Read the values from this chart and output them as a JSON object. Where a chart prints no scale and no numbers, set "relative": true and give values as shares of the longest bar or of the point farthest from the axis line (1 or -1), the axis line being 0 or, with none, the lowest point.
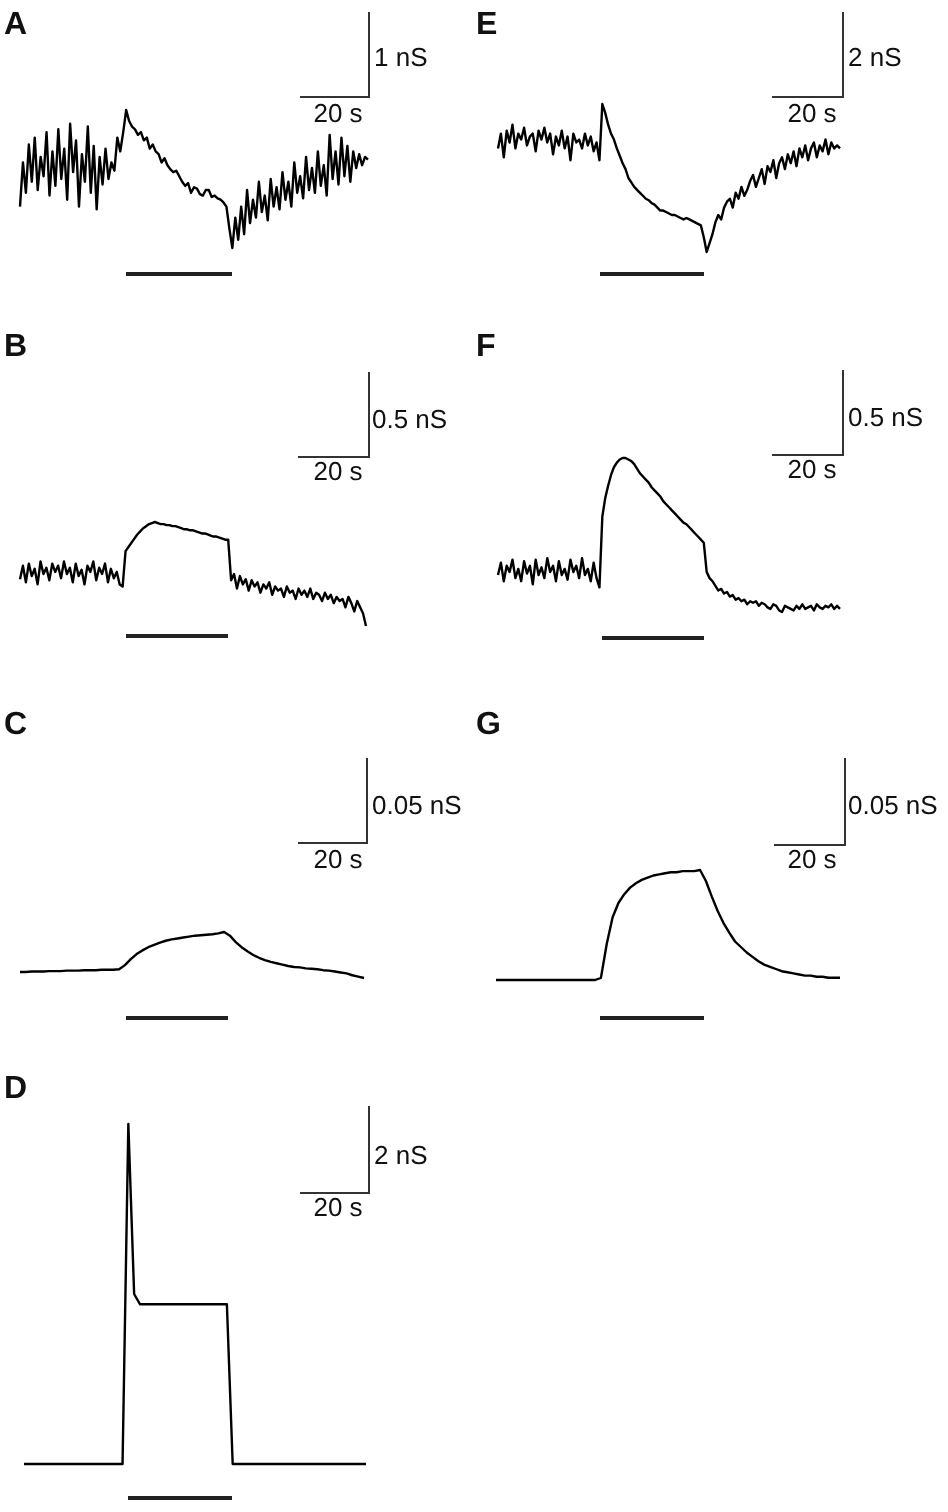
{
  "chart_data": [
    {
      "type": "line",
      "title": "A",
      "relative": true,
      "color": "#000000",
      "annotations": [
        "1 nS",
        "20 s"
      ],
      "categories": [
        null,
        null,
        null,
        null,
        null,
        null,
        null,
        null,
        null,
        null,
        null,
        null,
        null,
        null,
        null,
        null,
        null,
        null,
        null,
        null,
        null,
        null,
        null,
        null,
        null,
        null,
        null,
        null,
        null,
        null,
        null,
        null,
        null,
        null,
        null,
        null,
        null,
        null,
        null,
        null,
        null,
        null,
        null,
        null,
        null,
        null,
        null,
        null,
        null,
        null,
        null,
        null,
        null,
        null,
        null,
        null,
        null,
        null,
        null,
        null,
        null,
        null,
        null,
        null,
        null,
        null,
        null,
        null,
        null,
        null,
        null,
        null,
        null,
        null,
        null,
        null,
        null,
        null,
        null,
        null,
        null,
        null,
        null,
        null,
        null,
        null,
        null,
        null,
        null,
        null,
        null,
        null,
        null,
        null,
        null,
        null,
        null,
        null,
        null,
        null,
        null,
        null,
        null,
        null,
        null,
        null,
        null,
        null,
        null,
        null,
        null,
        null,
        null,
        null,
        null,
        null,
        null,
        null,
        null
      ],
      "values": [
        0.3,
        0.62,
        0.4,
        0.75,
        0.48,
        0.8,
        0.42,
        0.66,
        0.52,
        0.84,
        0.38,
        0.7,
        0.45,
        0.86,
        0.5,
        0.72,
        0.35,
        0.9,
        0.55,
        0.78,
        0.3,
        0.68,
        0.48,
        0.88,
        0.4,
        0.74,
        0.28,
        0.66,
        0.46,
        0.72,
        0.5,
        0.62,
        0.56,
        0.8,
        0.7,
        0.84,
        1.0,
        0.92,
        0.88,
        0.86,
        0.82,
        0.84,
        0.78,
        0.8,
        0.72,
        0.75,
        0.7,
        0.68,
        0.62,
        0.65,
        0.6,
        0.57,
        0.55,
        0.56,
        0.52,
        0.48,
        0.45,
        0.47,
        0.4,
        0.44,
        0.43,
        0.39,
        0.38,
        0.42,
        0.42,
        0.37,
        0.38,
        0.36,
        0.35,
        0.33,
        0.3,
        0.14,
        0.0,
        0.22,
        0.06,
        0.3,
        0.1,
        0.42,
        0.18,
        0.35,
        0.22,
        0.48,
        0.26,
        0.38,
        0.2,
        0.5,
        0.3,
        0.44,
        0.28,
        0.55,
        0.35,
        0.48,
        0.3,
        0.62,
        0.4,
        0.52,
        0.36,
        0.66,
        0.42,
        0.58,
        0.4,
        0.7,
        0.45,
        0.6,
        0.38,
        0.82,
        0.5,
        0.7,
        0.46,
        0.8,
        0.52,
        0.74,
        0.48,
        0.7,
        0.58,
        0.68,
        0.6,
        0.66,
        0.64
      ]
    },
    {
      "type": "line",
      "title": "B",
      "relative": true,
      "color": "#000000",
      "annotations": [
        "0.5 nS",
        "20 s"
      ],
      "categories": [
        null,
        null,
        null,
        null,
        null,
        null,
        null,
        null,
        null,
        null,
        null,
        null,
        null,
        null,
        null,
        null,
        null,
        null,
        null,
        null,
        null,
        null,
        null,
        null,
        null,
        null,
        null,
        null,
        null,
        null,
        null,
        null,
        null,
        null,
        null,
        null,
        null,
        null,
        null,
        null,
        null,
        null,
        null,
        null,
        null,
        null,
        null,
        null,
        null,
        null,
        null,
        null,
        null,
        null,
        null,
        null,
        null,
        null,
        null,
        null,
        null,
        null,
        null,
        null,
        null,
        null,
        null,
        null,
        null,
        null,
        null,
        null,
        null,
        null,
        null,
        null,
        null,
        null,
        null,
        null,
        null,
        null,
        null,
        null,
        null,
        null,
        null,
        null,
        null,
        null,
        null,
        null,
        null,
        null,
        null,
        null,
        null,
        null,
        null,
        null,
        null,
        null,
        null,
        null,
        null,
        null,
        null,
        null,
        null,
        null,
        null,
        null,
        null,
        null,
        null,
        null,
        null,
        null,
        null
      ],
      "values": [
        0.45,
        0.58,
        0.42,
        0.6,
        0.48,
        0.55,
        0.4,
        0.62,
        0.5,
        0.56,
        0.44,
        0.6,
        0.52,
        0.58,
        0.46,
        0.62,
        0.5,
        0.56,
        0.42,
        0.6,
        0.48,
        0.54,
        0.4,
        0.58,
        0.52,
        0.62,
        0.44,
        0.56,
        0.5,
        0.6,
        0.42,
        0.55,
        0.46,
        0.52,
        0.4,
        0.38,
        0.72,
        0.76,
        0.8,
        0.84,
        0.88,
        0.91,
        0.94,
        0.96,
        0.98,
        0.99,
        1.0,
        0.99,
        0.98,
        0.98,
        0.97,
        0.97,
        0.96,
        0.96,
        0.95,
        0.94,
        0.93,
        0.93,
        0.92,
        0.92,
        0.91,
        0.9,
        0.89,
        0.89,
        0.88,
        0.87,
        0.86,
        0.86,
        0.85,
        0.84,
        0.83,
        0.83,
        0.44,
        0.5,
        0.36,
        0.48,
        0.4,
        0.45,
        0.34,
        0.44,
        0.38,
        0.42,
        0.32,
        0.4,
        0.36,
        0.42,
        0.3,
        0.38,
        0.34,
        0.36,
        0.28,
        0.38,
        0.32,
        0.34,
        0.26,
        0.36,
        0.3,
        0.34,
        0.28,
        0.36,
        0.26,
        0.32,
        0.3,
        0.24,
        0.32,
        0.26,
        0.3,
        0.22,
        0.28,
        0.24,
        0.26,
        0.18,
        0.28,
        0.22,
        0.14,
        0.24,
        0.18,
        0.12,
        0.0
      ]
    },
    {
      "type": "line",
      "title": "C",
      "relative": true,
      "color": "#000000",
      "annotations": [
        "0.05 nS",
        "20 s"
      ],
      "categories": [
        null,
        null,
        null,
        null,
        null,
        null,
        null,
        null,
        null,
        null,
        null,
        null,
        null,
        null,
        null,
        null,
        null,
        null,
        null,
        null,
        null,
        null,
        null,
        null,
        null,
        null,
        null,
        null,
        null,
        null,
        null,
        null,
        null,
        null,
        null,
        null,
        null,
        null,
        null,
        null,
        null,
        null,
        null,
        null,
        null,
        null,
        null,
        null,
        null,
        null,
        null,
        null,
        null,
        null,
        null,
        null,
        null,
        null,
        null,
        null
      ],
      "values": [
        0.13,
        0.13,
        0.14,
        0.14,
        0.14,
        0.15,
        0.15,
        0.15,
        0.16,
        0.16,
        0.16,
        0.17,
        0.17,
        0.17,
        0.18,
        0.18,
        0.18,
        0.19,
        0.28,
        0.41,
        0.52,
        0.6,
        0.67,
        0.72,
        0.77,
        0.81,
        0.84,
        0.86,
        0.88,
        0.9,
        0.92,
        0.93,
        0.94,
        0.95,
        0.97,
        1.0,
        0.92,
        0.78,
        0.67,
        0.58,
        0.5,
        0.44,
        0.39,
        0.35,
        0.32,
        0.29,
        0.26,
        0.24,
        0.23,
        0.21,
        0.2,
        0.19,
        0.17,
        0.16,
        0.14,
        0.12,
        0.1,
        0.06,
        0.03,
        0.0
      ]
    },
    {
      "type": "line",
      "title": "D",
      "relative": true,
      "color": "#000000",
      "annotations": [
        "2 nS",
        "20 s"
      ],
      "categories": [
        null,
        null,
        null,
        null,
        null,
        null,
        null,
        null,
        null,
        null,
        null,
        null,
        null,
        null,
        null,
        null,
        null,
        null,
        null,
        null,
        null,
        null,
        null,
        null,
        null,
        null,
        null,
        null,
        null,
        null,
        null,
        null,
        null,
        null,
        null,
        null,
        null,
        null,
        null,
        null,
        null,
        null,
        null,
        null,
        null,
        null,
        null,
        null,
        null,
        null,
        null,
        null,
        null,
        null,
        null,
        null,
        null,
        null,
        null,
        null
      ],
      "values": [
        0,
        0,
        0,
        0,
        0,
        0,
        0,
        0,
        0,
        0,
        0,
        0,
        0,
        0,
        0,
        0,
        0,
        0,
        1.0,
        0.5,
        0.47,
        0.47,
        0.47,
        0.47,
        0.47,
        0.47,
        0.47,
        0.47,
        0.47,
        0.47,
        0.47,
        0.47,
        0.47,
        0.47,
        0.47,
        0.47,
        0,
        0,
        0,
        0,
        0,
        0,
        0,
        0,
        0,
        0,
        0,
        0,
        0,
        0,
        0,
        0,
        0,
        0,
        0,
        0,
        0,
        0,
        0,
        0
      ]
    },
    {
      "type": "line",
      "title": "E",
      "relative": true,
      "color": "#000000",
      "annotations": [
        "2 nS",
        "20 s"
      ],
      "categories": [
        null,
        null,
        null,
        null,
        null,
        null,
        null,
        null,
        null,
        null,
        null,
        null,
        null,
        null,
        null,
        null,
        null,
        null,
        null,
        null,
        null,
        null,
        null,
        null,
        null,
        null,
        null,
        null,
        null,
        null,
        null,
        null,
        null,
        null,
        null,
        null,
        null,
        null,
        null,
        null,
        null,
        null,
        null,
        null,
        null,
        null,
        null,
        null,
        null,
        null,
        null,
        null,
        null,
        null,
        null,
        null,
        null,
        null,
        null,
        null,
        null,
        null,
        null,
        null,
        null,
        null,
        null,
        null,
        null,
        null,
        null,
        null,
        null,
        null,
        null,
        null,
        null,
        null,
        null,
        null,
        null,
        null,
        null,
        null,
        null,
        null,
        null,
        null,
        null,
        null,
        null,
        null,
        null,
        null,
        null,
        null,
        null,
        null,
        null,
        null,
        null,
        null,
        null,
        null,
        null,
        null,
        null,
        null,
        null,
        null,
        null,
        null,
        null,
        null,
        null,
        null,
        null,
        null,
        null
      ],
      "values": [
        0.7,
        0.8,
        0.64,
        0.82,
        0.74,
        0.86,
        0.7,
        0.8,
        0.76,
        0.84,
        0.72,
        0.78,
        0.8,
        0.68,
        0.82,
        0.76,
        0.84,
        0.74,
        0.8,
        0.66,
        0.78,
        0.72,
        0.82,
        0.7,
        0.78,
        0.62,
        0.8,
        0.74,
        0.76,
        0.7,
        0.8,
        0.72,
        0.78,
        0.68,
        0.74,
        0.62,
        1.0,
        0.94,
        0.86,
        0.8,
        0.76,
        0.7,
        0.65,
        0.6,
        0.56,
        0.5,
        0.47,
        0.44,
        0.42,
        0.4,
        0.38,
        0.36,
        0.35,
        0.33,
        0.32,
        0.3,
        0.28,
        0.28,
        0.27,
        0.26,
        0.25,
        0.25,
        0.24,
        0.23,
        0.22,
        0.23,
        0.22,
        0.21,
        0.2,
        0.19,
        0.18,
        0.1,
        0.0,
        0.06,
        0.12,
        0.2,
        0.25,
        0.22,
        0.3,
        0.34,
        0.36,
        0.3,
        0.4,
        0.36,
        0.44,
        0.38,
        0.42,
        0.48,
        0.52,
        0.44,
        0.5,
        0.56,
        0.46,
        0.58,
        0.54,
        0.62,
        0.5,
        0.6,
        0.64,
        0.56,
        0.66,
        0.6,
        0.68,
        0.58,
        0.7,
        0.64,
        0.72,
        0.62,
        0.7,
        0.74,
        0.64,
        0.72,
        0.68,
        0.76,
        0.66,
        0.74,
        0.7,
        0.72,
        0.7
      ]
    },
    {
      "type": "line",
      "title": "F",
      "relative": true,
      "color": "#000000",
      "annotations": [
        "0.5 nS",
        "20 s"
      ],
      "categories": [
        null,
        null,
        null,
        null,
        null,
        null,
        null,
        null,
        null,
        null,
        null,
        null,
        null,
        null,
        null,
        null,
        null,
        null,
        null,
        null,
        null,
        null,
        null,
        null,
        null,
        null,
        null,
        null,
        null,
        null,
        null,
        null,
        null,
        null,
        null,
        null,
        null,
        null,
        null,
        null,
        null,
        null,
        null,
        null,
        null,
        null,
        null,
        null,
        null,
        null,
        null,
        null,
        null,
        null,
        null,
        null,
        null,
        null,
        null,
        null,
        null,
        null,
        null,
        null,
        null,
        null,
        null,
        null,
        null,
        null,
        null,
        null,
        null,
        null,
        null,
        null,
        null,
        null,
        null,
        null,
        null,
        null,
        null,
        null,
        null,
        null,
        null,
        null,
        null,
        null,
        null,
        null,
        null,
        null,
        null,
        null,
        null,
        null,
        null,
        null,
        null,
        null,
        null,
        null,
        null,
        null,
        null,
        null,
        null,
        null,
        null,
        null,
        null,
        null,
        null,
        null,
        null,
        null,
        null
      ],
      "values": [
        0.24,
        0.32,
        0.2,
        0.3,
        0.26,
        0.34,
        0.22,
        0.28,
        0.2,
        0.33,
        0.25,
        0.3,
        0.18,
        0.34,
        0.24,
        0.29,
        0.22,
        0.35,
        0.26,
        0.3,
        0.2,
        0.33,
        0.24,
        0.28,
        0.21,
        0.34,
        0.26,
        0.3,
        0.22,
        0.35,
        0.24,
        0.28,
        0.2,
        0.32,
        0.22,
        0.16,
        0.62,
        0.74,
        0.82,
        0.89,
        0.94,
        0.97,
        0.99,
        1.0,
        1.0,
        0.99,
        0.98,
        0.96,
        0.93,
        0.9,
        0.88,
        0.86,
        0.84,
        0.81,
        0.79,
        0.77,
        0.75,
        0.72,
        0.7,
        0.68,
        0.66,
        0.64,
        0.62,
        0.6,
        0.58,
        0.57,
        0.55,
        0.53,
        0.51,
        0.49,
        0.47,
        0.45,
        0.26,
        0.22,
        0.2,
        0.17,
        0.14,
        0.15,
        0.12,
        0.13,
        0.1,
        0.11,
        0.08,
        0.09,
        0.07,
        0.08,
        0.05,
        0.07,
        0.06,
        0.07,
        0.04,
        0.06,
        0.05,
        0.03,
        0.02,
        0.05,
        0.04,
        0.01,
        0.0,
        0.04,
        0.03,
        0.02,
        0.01,
        0.04,
        0.02,
        0.05,
        0.02,
        0.03,
        0.04,
        0.01,
        0.05,
        0.03,
        0.02,
        0.04,
        0.03,
        0.05,
        0.02,
        0.04,
        0.02
      ]
    },
    {
      "type": "line",
      "title": "G",
      "relative": true,
      "color": "#000000",
      "annotations": [
        "0.05 nS",
        "20 s"
      ],
      "categories": [
        null,
        null,
        null,
        null,
        null,
        null,
        null,
        null,
        null,
        null,
        null,
        null,
        null,
        null,
        null,
        null,
        null,
        null,
        null,
        null,
        null,
        null,
        null,
        null,
        null,
        null,
        null,
        null,
        null,
        null,
        null,
        null,
        null,
        null,
        null,
        null,
        null,
        null,
        null,
        null,
        null,
        null,
        null,
        null,
        null,
        null,
        null,
        null,
        null,
        null,
        null,
        null,
        null,
        null,
        null,
        null,
        null,
        null,
        null,
        null
      ],
      "values": [
        0,
        0,
        0,
        0,
        0,
        0,
        0,
        0,
        0,
        0,
        0,
        0,
        0,
        0,
        0,
        0,
        0,
        0,
        0.02,
        0.33,
        0.57,
        0.7,
        0.78,
        0.84,
        0.88,
        0.91,
        0.93,
        0.95,
        0.96,
        0.97,
        0.98,
        0.98,
        0.99,
        0.99,
        0.99,
        1.0,
        0.9,
        0.76,
        0.63,
        0.52,
        0.43,
        0.35,
        0.3,
        0.25,
        0.21,
        0.17,
        0.14,
        0.12,
        0.1,
        0.08,
        0.07,
        0.06,
        0.05,
        0.04,
        0.04,
        0.03,
        0.03,
        0.02,
        0.02,
        0.02
      ]
    }
  ]
}
